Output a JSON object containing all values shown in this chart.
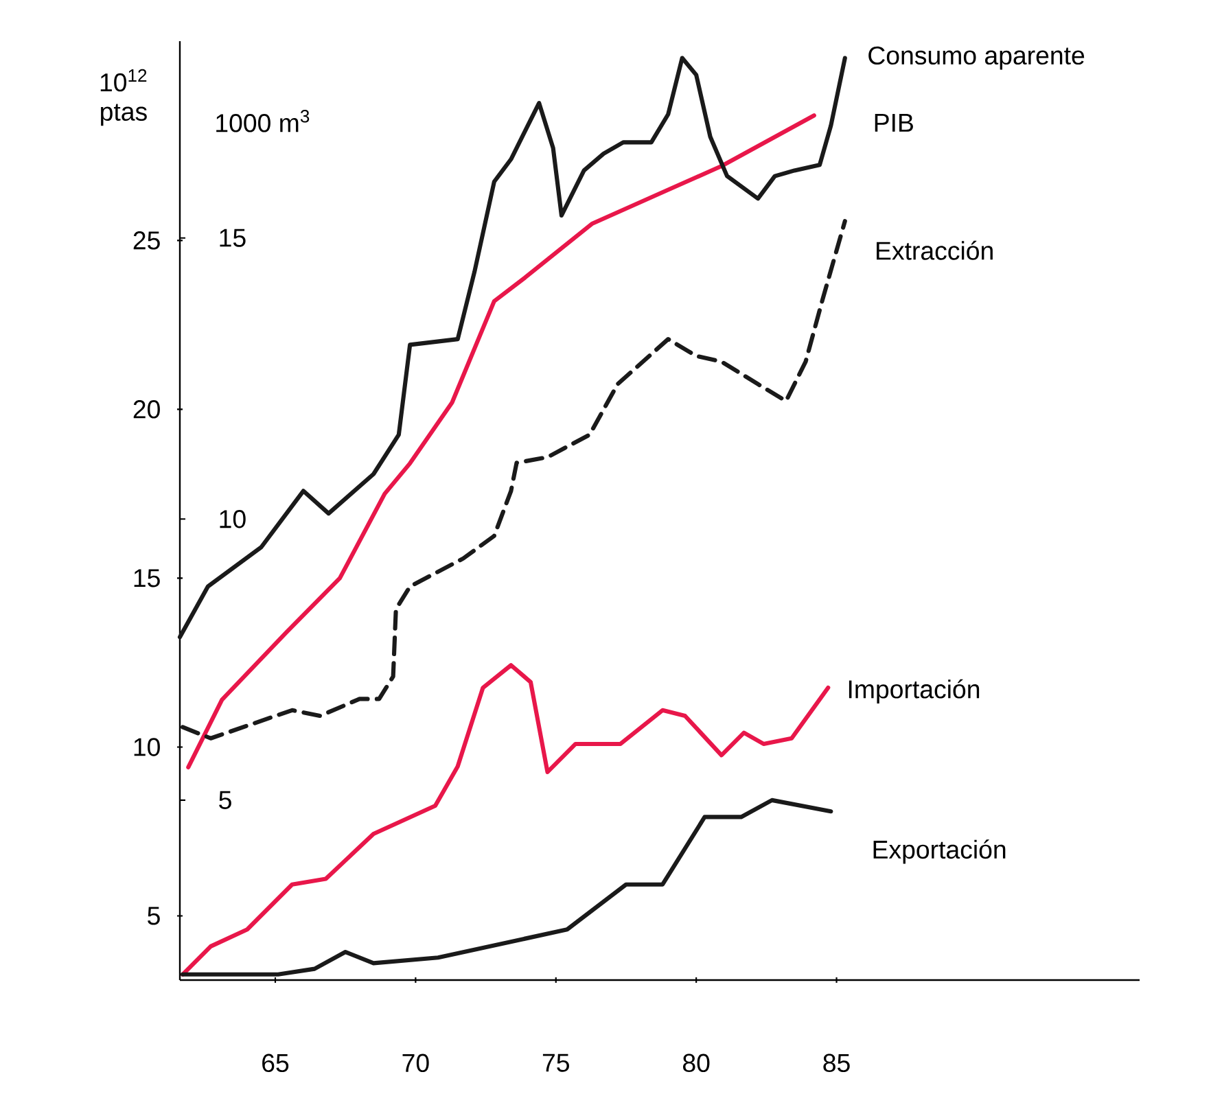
{
  "chart_data": {
    "type": "line",
    "ylabel": "10$^{12}$ ptas",
    "y2label": "1000 m$^{3}$",
    "xlim": [
      61.6,
      95.8
    ],
    "xticks": [
      65,
      70,
      75,
      80,
      85
    ],
    "ylim": [
      3.1,
      30.9
    ],
    "yticks": [
      5,
      10,
      15,
      20,
      25
    ],
    "y2lim": [
      1.8,
      18.5
    ],
    "y2ticks": [
      5,
      10,
      15
    ],
    "series": [
      {
        "name": "Consumo aparente",
        "color": "#1a1a1a",
        "axis": "y2",
        "x": [
          61.6,
          62.6,
          64.5,
          66.0,
          66.9,
          68.5,
          69.4,
          69.8,
          71.5,
          72.1,
          72.8,
          73.4,
          74.4,
          74.9,
          75.2,
          76.0,
          76.7,
          77.4,
          78.4,
          79.0,
          79.5,
          80.0,
          80.5,
          81.1,
          82.2,
          82.8,
          83.5,
          84.4,
          84.8,
          85.3
        ],
        "values": [
          7.9,
          8.8,
          9.5,
          10.5,
          10.1,
          10.8,
          11.5,
          13.1,
          13.2,
          14.4,
          16.0,
          16.4,
          17.4,
          16.6,
          15.4,
          16.2,
          16.5,
          16.7,
          16.7,
          17.2,
          18.2,
          17.9,
          16.8,
          16.1,
          15.7,
          16.1,
          16.2,
          16.3,
          17.0,
          18.2
        ]
      },
      {
        "name": "PIB",
        "color": "#e8174a",
        "axis": "y",
        "x": [
          61.9,
          63.1,
          65.4,
          67.3,
          68.9,
          69.8,
          71.3,
          72.8,
          73.9,
          76.3,
          79.0,
          80.9,
          84.2
        ],
        "values": [
          9.4,
          11.4,
          13.4,
          15.0,
          17.5,
          18.4,
          20.2,
          23.2,
          23.9,
          25.5,
          26.5,
          27.2,
          28.7
        ]
      },
      {
        "name": "Extracción",
        "color": "#1a1a1a",
        "axis": "y2",
        "line_style": "dashed",
        "x": [
          61.7,
          62.7,
          65.6,
          66.6,
          68.0,
          68.7,
          69.2,
          69.3,
          69.8,
          71.7,
          72.8,
          73.4,
          73.6,
          74.7,
          76.2,
          77.2,
          79.0,
          80.0,
          80.9,
          82.2,
          83.2,
          83.9,
          84.5,
          85.3
        ],
        "values": [
          6.3,
          6.1,
          6.6,
          6.5,
          6.8,
          6.8,
          7.2,
          8.4,
          8.8,
          9.3,
          9.7,
          10.5,
          11.0,
          11.1,
          11.5,
          12.4,
          13.2,
          12.9,
          12.8,
          12.4,
          12.1,
          12.8,
          13.9,
          15.3
        ]
      },
      {
        "name": "Importación",
        "color": "#e8174a",
        "axis": "y2",
        "x": [
          61.7,
          62.7,
          64.0,
          65.6,
          66.8,
          68.5,
          70.7,
          71.5,
          72.4,
          73.4,
          74.1,
          74.7,
          75.7,
          77.3,
          78.8,
          79.6,
          80.9,
          81.7,
          82.4,
          83.4,
          84.7
        ],
        "values": [
          1.9,
          2.4,
          2.7,
          3.5,
          3.6,
          4.4,
          4.9,
          5.6,
          7.0,
          7.4,
          7.1,
          5.5,
          6.0,
          6.0,
          6.6,
          6.5,
          5.8,
          6.2,
          6.0,
          6.1,
          7.0
        ]
      },
      {
        "name": "Exportación",
        "color": "#1a1a1a",
        "axis": "y2",
        "x": [
          61.7,
          65.1,
          66.4,
          67.5,
          68.5,
          70.8,
          75.4,
          77.5,
          78.8,
          80.3,
          81.6,
          82.7,
          84.8
        ],
        "values": [
          1.9,
          1.9,
          2.0,
          2.3,
          2.1,
          2.2,
          2.7,
          3.5,
          3.5,
          4.7,
          4.7,
          5.0,
          4.8
        ]
      }
    ]
  }
}
